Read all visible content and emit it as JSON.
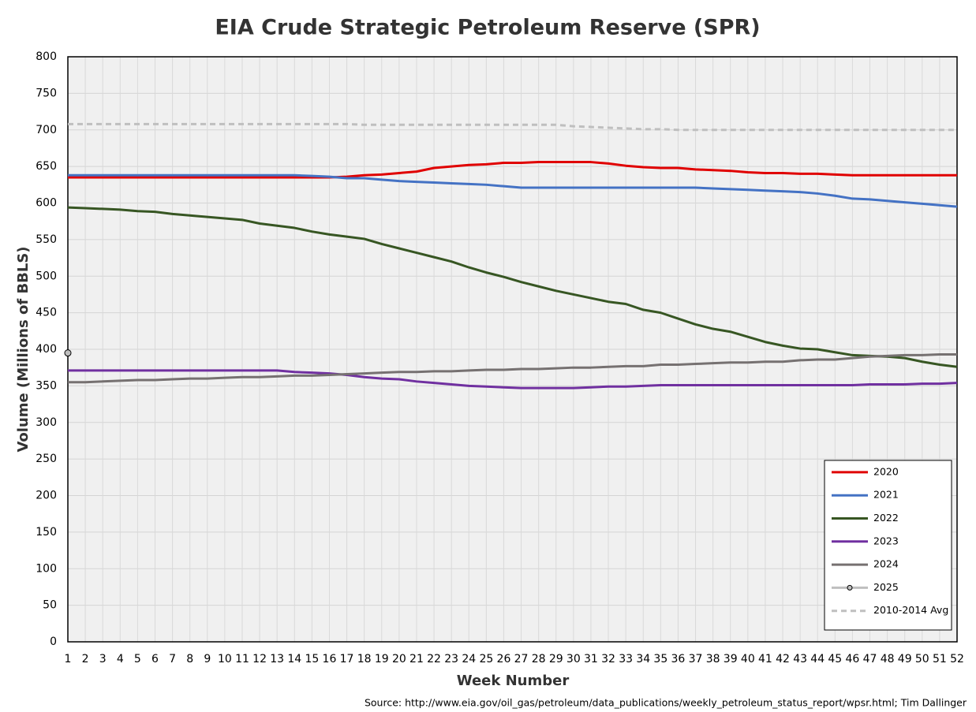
{
  "chart_data": {
    "type": "line",
    "title": "EIA Crude Strategic Petroleum Reserve (SPR)",
    "x_label": "Week Number",
    "y_label": "Volume (Millions of BBLS)",
    "source": "Source: http://www.eia.gov/oil_gas/petroleum/data_publications/weekly_petroleum_status_report/wpsr.html; Tim Dallinger",
    "x": [
      1,
      2,
      3,
      4,
      5,
      6,
      7,
      8,
      9,
      10,
      11,
      12,
      13,
      14,
      15,
      16,
      17,
      18,
      19,
      20,
      21,
      22,
      23,
      24,
      25,
      26,
      27,
      28,
      29,
      30,
      31,
      32,
      33,
      34,
      35,
      36,
      37,
      38,
      39,
      40,
      41,
      42,
      43,
      44,
      45,
      46,
      47,
      48,
      49,
      50,
      51,
      52
    ],
    "xlim": [
      1,
      52
    ],
    "xticks": [
      1,
      2,
      3,
      4,
      5,
      6,
      7,
      8,
      9,
      10,
      11,
      12,
      13,
      14,
      15,
      16,
      17,
      18,
      19,
      20,
      21,
      22,
      23,
      24,
      25,
      26,
      27,
      28,
      29,
      30,
      31,
      32,
      33,
      34,
      35,
      36,
      37,
      38,
      39,
      40,
      41,
      42,
      43,
      44,
      45,
      46,
      47,
      48,
      49,
      50,
      51,
      52
    ],
    "ylim": [
      0,
      800
    ],
    "yticks": [
      0,
      50,
      100,
      150,
      200,
      250,
      300,
      350,
      400,
      450,
      500,
      550,
      600,
      650,
      700,
      750,
      800
    ],
    "grid": true,
    "legend": "lower right",
    "series": [
      {
        "name": "2020",
        "color": "#e00000",
        "values": [
          635,
          635,
          635,
          635,
          635,
          635,
          635,
          635,
          635,
          635,
          635,
          635,
          635,
          635,
          635,
          635,
          636,
          638,
          639,
          641,
          643,
          648,
          650,
          652,
          653,
          655,
          655,
          656,
          656,
          656,
          656,
          654,
          651,
          649,
          648,
          648,
          646,
          645,
          644,
          642,
          641,
          641,
          640,
          640,
          639,
          638,
          638,
          638,
          638,
          638,
          638,
          638
        ]
      },
      {
        "name": "2021",
        "color": "#4472c4",
        "values": [
          638,
          638,
          638,
          638,
          638,
          638,
          638,
          638,
          638,
          638,
          638,
          638,
          638,
          638,
          637,
          636,
          634,
          634,
          632,
          630,
          629,
          628,
          627,
          626,
          625,
          623,
          621,
          621,
          621,
          621,
          621,
          621,
          621,
          621,
          621,
          621,
          621,
          620,
          619,
          618,
          617,
          616,
          615,
          613,
          610,
          606,
          605,
          603,
          601,
          599,
          597,
          595
        ]
      },
      {
        "name": "2022",
        "color": "#375623",
        "values": [
          594,
          593,
          592,
          591,
          589,
          588,
          585,
          583,
          581,
          579,
          577,
          572,
          569,
          566,
          561,
          557,
          554,
          551,
          544,
          538,
          532,
          526,
          520,
          512,
          505,
          499,
          492,
          486,
          480,
          475,
          470,
          465,
          462,
          454,
          450,
          442,
          434,
          428,
          424,
          417,
          410,
          405,
          401,
          400,
          396,
          392,
          391,
          390,
          388,
          383,
          379,
          376
        ]
      },
      {
        "name": "2023",
        "color": "#7030a0",
        "values": [
          371,
          371,
          371,
          371,
          371,
          371,
          371,
          371,
          371,
          371,
          371,
          371,
          371,
          369,
          368,
          367,
          365,
          362,
          360,
          359,
          356,
          354,
          352,
          350,
          349,
          348,
          347,
          347,
          347,
          347,
          348,
          349,
          349,
          350,
          351,
          351,
          351,
          351,
          351,
          351,
          351,
          351,
          351,
          351,
          351,
          351,
          352,
          352,
          352,
          353,
          353,
          354
        ]
      },
      {
        "name": "2024",
        "color": "#767171",
        "values": [
          355,
          355,
          356,
          357,
          358,
          358,
          359,
          360,
          360,
          361,
          362,
          362,
          363,
          364,
          364,
          365,
          366,
          367,
          368,
          369,
          369,
          370,
          370,
          371,
          372,
          372,
          373,
          373,
          374,
          375,
          375,
          376,
          377,
          377,
          379,
          379,
          380,
          381,
          382,
          382,
          383,
          383,
          385,
          386,
          386,
          388,
          390,
          391,
          392,
          392,
          393,
          393
        ]
      },
      {
        "name": "2025",
        "color": "#bfbfbf",
        "marker": true,
        "values": [
          395,
          null,
          null,
          null,
          null,
          null,
          null,
          null,
          null,
          null,
          null,
          null,
          null,
          null,
          null,
          null,
          null,
          null,
          null,
          null,
          null,
          null,
          null,
          null,
          null,
          null,
          null,
          null,
          null,
          null,
          null,
          null,
          null,
          null,
          null,
          null,
          null,
          null,
          null,
          null,
          null,
          null,
          null,
          null,
          null,
          null,
          null,
          null,
          null,
          null,
          null,
          null
        ]
      },
      {
        "name": "2010-2014 Avg",
        "color": "#bfbfbf",
        "dashed": true,
        "values": [
          708,
          708,
          708,
          708,
          708,
          708,
          708,
          708,
          708,
          708,
          708,
          708,
          708,
          708,
          708,
          708,
          708,
          707,
          707,
          707,
          707,
          707,
          707,
          707,
          707,
          707,
          707,
          707,
          707,
          705,
          704,
          703,
          702,
          701,
          701,
          700,
          700,
          700,
          700,
          700,
          700,
          700,
          700,
          700,
          700,
          700,
          700,
          700,
          700,
          700,
          700,
          700
        ]
      }
    ]
  }
}
